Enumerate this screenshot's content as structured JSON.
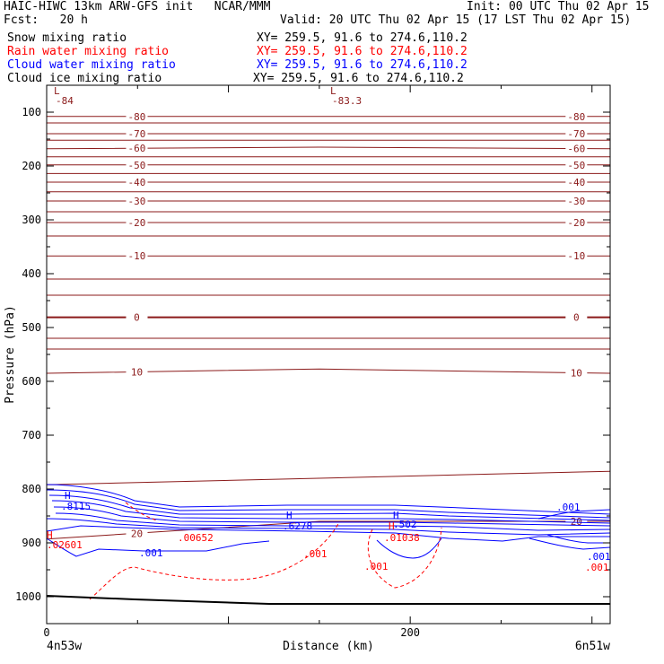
{
  "header": {
    "model_title": "HAIC-HIWC 13km ARW-GFS init   NCAR/MMM",
    "init": "Init: 00 UTC Thu 02 Apr 15",
    "fcst": "Fcst:   20 h",
    "valid": "Valid: 20 UTC Thu 02 Apr 15 (17 LST Thu 02 Apr 15)",
    "fields": [
      {
        "name": "Snow mixing ratio",
        "xy": "XY= 259.5, 91.6 to 274.6,110.2",
        "color": "#000000"
      },
      {
        "name": "Rain water mixing ratio",
        "xy": "XY= 259.5, 91.6 to 274.6,110.2",
        "color": "#ff0000"
      },
      {
        "name": "Cloud water mixing ratio",
        "xy": "XY= 259.5, 91.6 to 274.6,110.2",
        "color": "#0000ff"
      },
      {
        "name": "Cloud ice mixing ratio",
        "xy": "XY= 259.5, 91.6 to 274.6,110.2",
        "color": "#000000"
      }
    ]
  },
  "chart_data": {
    "type": "line",
    "subtype": "vertical cross-section contour plot",
    "xlabel": "Distance (km)",
    "ylabel": "Pressure (hPa)",
    "x_ticks": [
      "0",
      "200"
    ],
    "x_range": [
      0,
      310
    ],
    "y_ticks": [
      "100",
      "200",
      "300",
      "400",
      "500",
      "600",
      "700",
      "800",
      "900",
      "1000"
    ],
    "y_range": [
      50,
      1050
    ],
    "endpoint_labels": {
      "left": "4n53w",
      "right": "6n51w"
    },
    "colors": {
      "temperature": "#8b1a1a",
      "rain": "#ff0000",
      "cloud_water": "#0000ff",
      "ground": "#000000"
    },
    "temperature_contours": {
      "label_values": [
        -84,
        -83.3,
        -80,
        -70,
        -60,
        -50,
        -40,
        -30,
        -20,
        -10,
        0,
        10,
        20
      ],
      "lines": [
        {
          "label": "-80",
          "p": [
            [
              0,
              108
            ],
            [
              310,
              108
            ]
          ]
        },
        {
          "label": "-70",
          "p": [
            [
              0,
              140
            ],
            [
              310,
              140
            ]
          ]
        },
        {
          "label": "-60",
          "p": [
            [
              0,
              168
            ],
            [
              150,
              165
            ],
            [
              310,
              168
            ]
          ]
        },
        {
          "label": "-50",
          "p": [
            [
              0,
              198
            ],
            [
              310,
              198
            ]
          ]
        },
        {
          "label": "-40",
          "p": [
            [
              0,
              230
            ],
            [
              310,
              230
            ]
          ]
        },
        {
          "label": "-30",
          "p": [
            [
              0,
              265
            ],
            [
              310,
              265
            ]
          ]
        },
        {
          "label": "-20",
          "p": [
            [
              0,
              305
            ],
            [
              310,
              305
            ]
          ]
        },
        {
          "label": "-10",
          "p": [
            [
              0,
              367
            ],
            [
              310,
              367
            ]
          ]
        },
        {
          "label": "0",
          "p": [
            [
              0,
              481
            ],
            [
              310,
              481
            ]
          ]
        },
        {
          "label": "10",
          "p": [
            [
              0,
              585
            ],
            [
              150,
              577
            ],
            [
              310,
              585
            ]
          ]
        },
        {
          "label": "20",
          "p": [
            [
              0,
              893
            ],
            [
              150,
              860
            ],
            [
              310,
              860
            ]
          ]
        }
      ]
    },
    "cloud_water_labels": [
      ".8115",
      ".6278",
      ".502",
      ".001",
      ".001",
      ".001"
    ],
    "rain_labels": [
      ".02601",
      ".00652",
      ".01038",
      ".001",
      ".001",
      ".001"
    ],
    "extrema_labels": [
      "L",
      "L",
      "H",
      "H",
      "H",
      "H",
      "H"
    ]
  }
}
